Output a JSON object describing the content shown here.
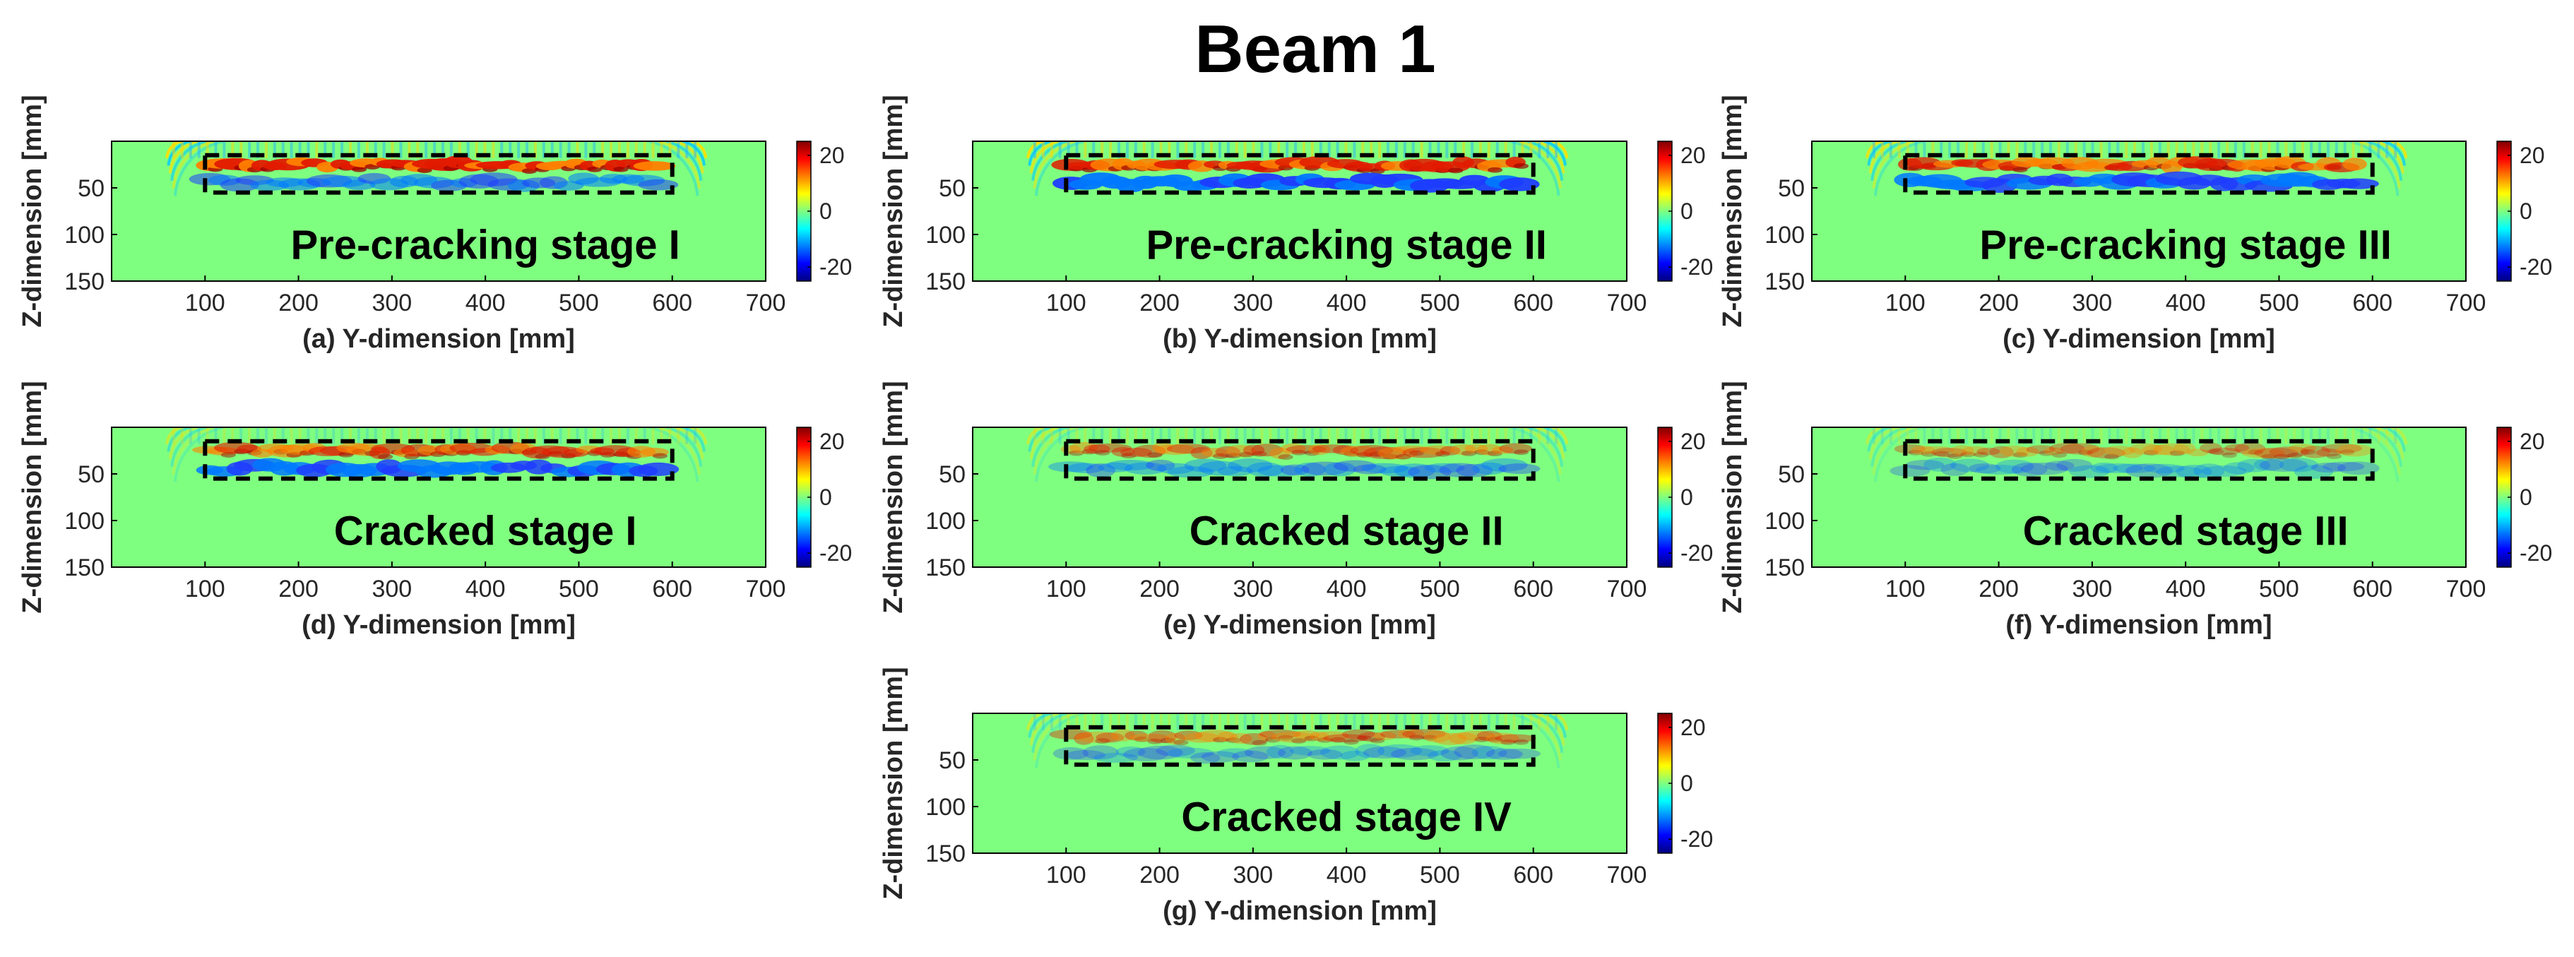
{
  "title": "Beam 1",
  "colors": {
    "background_field": "#7fff7f",
    "frame": "#000000"
  },
  "colormap": [
    "#00007f",
    "#0000ff",
    "#007fff",
    "#00ffff",
    "#7fff7f",
    "#ffff00",
    "#ff7f00",
    "#ff0000",
    "#7f0000"
  ],
  "chart_data": [
    {
      "type": "heatmap",
      "panel": "a",
      "title": "Pre-cracking stage I",
      "xlabel": "(a) Y-dimension [mm]",
      "ylabel": "Z-dimension [mm]",
      "xlim": [
        0,
        700
      ],
      "ylim": [
        0,
        150
      ],
      "xticks": [
        100,
        200,
        300,
        400,
        500,
        600,
        700
      ],
      "yticks": [
        50,
        100,
        150
      ],
      "colorbar": {
        "ticks": [
          20,
          0,
          -20
        ],
        "range": [
          -25,
          25
        ]
      },
      "highlight_box": {
        "x": [
          100,
          600
        ],
        "z": [
          15,
          55
        ]
      },
      "wave_extent": {
        "x": [
          55,
          640
        ],
        "z": [
          0,
          60
        ]
      },
      "pattern": "pre1"
    },
    {
      "type": "heatmap",
      "panel": "b",
      "title": "Pre-cracking stage II",
      "xlabel": "(b) Y-dimension [mm]",
      "ylabel": "Z-dimension [mm]",
      "xlim": [
        0,
        700
      ],
      "ylim": [
        0,
        150
      ],
      "xticks": [
        100,
        200,
        300,
        400,
        500,
        600,
        700
      ],
      "yticks": [
        50,
        100,
        150
      ],
      "colorbar": {
        "ticks": [
          20,
          0,
          -20
        ],
        "range": [
          -25,
          25
        ]
      },
      "highlight_box": {
        "x": [
          100,
          600
        ],
        "z": [
          15,
          55
        ]
      },
      "wave_extent": {
        "x": [
          55,
          640
        ],
        "z": [
          0,
          60
        ]
      },
      "pattern": "pre2"
    },
    {
      "type": "heatmap",
      "panel": "c",
      "title": "Pre-cracking stage III",
      "xlabel": "(c) Y-dimension [mm]",
      "ylabel": "Z-dimension [mm]",
      "xlim": [
        0,
        700
      ],
      "ylim": [
        0,
        150
      ],
      "xticks": [
        100,
        200,
        300,
        400,
        500,
        600,
        700
      ],
      "yticks": [
        50,
        100,
        150
      ],
      "colorbar": {
        "ticks": [
          20,
          0,
          -20
        ],
        "range": [
          -25,
          25
        ]
      },
      "highlight_box": {
        "x": [
          100,
          600
        ],
        "z": [
          15,
          55
        ]
      },
      "wave_extent": {
        "x": [
          55,
          640
        ],
        "z": [
          0,
          60
        ]
      },
      "pattern": "pre3"
    },
    {
      "type": "heatmap",
      "panel": "d",
      "title": "Cracked stage I",
      "xlabel": "(d) Y-dimension [mm]",
      "ylabel": "Z-dimension [mm]",
      "xlim": [
        0,
        700
      ],
      "ylim": [
        0,
        150
      ],
      "xticks": [
        100,
        200,
        300,
        400,
        500,
        600,
        700
      ],
      "yticks": [
        50,
        100,
        150
      ],
      "colorbar": {
        "ticks": [
          20,
          0,
          -20
        ],
        "range": [
          -25,
          25
        ]
      },
      "highlight_box": {
        "x": [
          100,
          600
        ],
        "z": [
          15,
          55
        ]
      },
      "wave_extent": {
        "x": [
          55,
          640
        ],
        "z": [
          0,
          60
        ]
      },
      "pattern": "crk1"
    },
    {
      "type": "heatmap",
      "panel": "e",
      "title": "Cracked stage II",
      "xlabel": "(e) Y-dimension [mm]",
      "ylabel": "Z-dimension [mm]",
      "xlim": [
        0,
        700
      ],
      "ylim": [
        0,
        150
      ],
      "xticks": [
        100,
        200,
        300,
        400,
        500,
        600,
        700
      ],
      "yticks": [
        50,
        100,
        150
      ],
      "colorbar": {
        "ticks": [
          20,
          0,
          -20
        ],
        "range": [
          -25,
          25
        ]
      },
      "highlight_box": {
        "x": [
          100,
          600
        ],
        "z": [
          15,
          55
        ]
      },
      "wave_extent": {
        "x": [
          55,
          640
        ],
        "z": [
          0,
          60
        ]
      },
      "pattern": "crk2"
    },
    {
      "type": "heatmap",
      "panel": "f",
      "title": "Cracked stage III",
      "xlabel": "(f) Y-dimension [mm]",
      "ylabel": "Z-dimension [mm]",
      "xlim": [
        0,
        700
      ],
      "ylim": [
        0,
        150
      ],
      "xticks": [
        100,
        200,
        300,
        400,
        500,
        600,
        700
      ],
      "yticks": [
        50,
        100,
        150
      ],
      "colorbar": {
        "ticks": [
          20,
          0,
          -20
        ],
        "range": [
          -25,
          25
        ]
      },
      "highlight_box": {
        "x": [
          100,
          600
        ],
        "z": [
          15,
          55
        ]
      },
      "wave_extent": {
        "x": [
          55,
          640
        ],
        "z": [
          0,
          60
        ]
      },
      "pattern": "crk3"
    },
    {
      "type": "heatmap",
      "panel": "g",
      "title": "Cracked stage IV",
      "xlabel": "(g) Y-dimension [mm]",
      "ylabel": "Z-dimension [mm]",
      "xlim": [
        0,
        700
      ],
      "ylim": [
        0,
        150
      ],
      "xticks": [
        100,
        200,
        300,
        400,
        500,
        600,
        700
      ],
      "yticks": [
        50,
        100,
        150
      ],
      "colorbar": {
        "ticks": [
          20,
          0,
          -20
        ],
        "range": [
          -25,
          25
        ]
      },
      "highlight_box": {
        "x": [
          100,
          600
        ],
        "z": [
          15,
          55
        ]
      },
      "wave_extent": {
        "x": [
          55,
          640
        ],
        "z": [
          0,
          60
        ]
      },
      "pattern": "crk4"
    }
  ]
}
